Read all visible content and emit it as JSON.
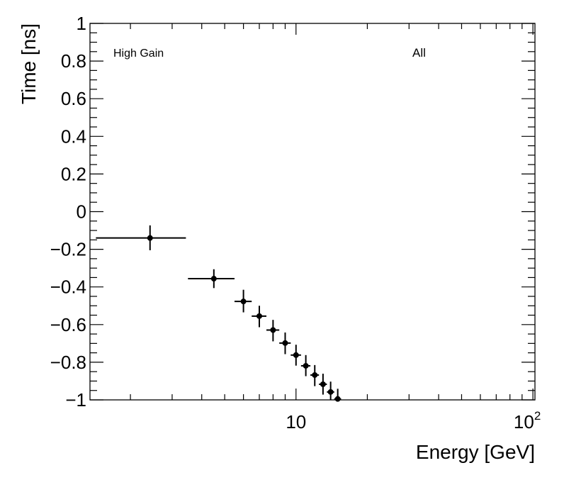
{
  "chart_data": {
    "type": "scatter",
    "title": "",
    "xlabel": "Energy [GeV]",
    "ylabel": "Time [ns]",
    "xscale": "log",
    "xlim": [
      1.35,
      102
    ],
    "ylim": [
      -1,
      1
    ],
    "grid": false,
    "annotations": [
      "High Gain",
      "All"
    ],
    "y_tick_labels": [
      "1",
      "0.8",
      "0.6",
      "0.4",
      "0.2",
      "0",
      "−0.2",
      "−0.4",
      "−0.6",
      "−0.8",
      "−1"
    ],
    "y_ticks": [
      1,
      0.8,
      0.6,
      0.4,
      0.2,
      0,
      -0.2,
      -0.4,
      -0.6,
      -0.8,
      -1
    ],
    "x_tick_labels": [
      {
        "value": 10,
        "base": "10",
        "exp": ""
      },
      {
        "value": 100,
        "base": "10",
        "exp": "2"
      }
    ],
    "marker_color": "#000000",
    "points": [
      {
        "x": 2.42,
        "xlo": 1.43,
        "xhi": 3.43,
        "y": -0.14,
        "ylo": -0.205,
        "yhi": -0.073
      },
      {
        "x": 4.5,
        "xlo": 3.5,
        "xhi": 5.5,
        "y": -0.356,
        "ylo": -0.406,
        "yhi": -0.306
      },
      {
        "x": 6,
        "xlo": 5.5,
        "xhi": 6.5,
        "y": -0.477,
        "ylo": -0.535,
        "yhi": -0.415
      },
      {
        "x": 7,
        "xlo": 6.5,
        "xhi": 7.5,
        "y": -0.555,
        "ylo": -0.614,
        "yhi": -0.5
      },
      {
        "x": 8,
        "xlo": 7.5,
        "xhi": 8.5,
        "y": -0.629,
        "ylo": -0.689,
        "yhi": -0.575
      },
      {
        "x": 9,
        "xlo": 8.5,
        "xhi": 9.5,
        "y": -0.698,
        "ylo": -0.757,
        "yhi": -0.642
      },
      {
        "x": 10,
        "xlo": 9.5,
        "xhi": 10.5,
        "y": -0.762,
        "ylo": -0.818,
        "yhi": -0.707
      },
      {
        "x": 11,
        "xlo": 10.5,
        "xhi": 11.5,
        "y": -0.819,
        "ylo": -0.874,
        "yhi": -0.762
      },
      {
        "x": 12,
        "xlo": 11.5,
        "xhi": 12.5,
        "y": -0.868,
        "ylo": -0.927,
        "yhi": -0.815
      },
      {
        "x": 13,
        "xlo": 12.5,
        "xhi": 13.5,
        "y": -0.917,
        "ylo": -0.972,
        "yhi": -0.861
      },
      {
        "x": 14,
        "xlo": 13.5,
        "xhi": 14.5,
        "y": -0.958,
        "ylo": -1.0,
        "yhi": -0.903
      },
      {
        "x": 15,
        "xlo": 14.5,
        "xhi": 15.5,
        "y": -0.995,
        "ylo": -1.0,
        "yhi": -0.941
      }
    ]
  }
}
